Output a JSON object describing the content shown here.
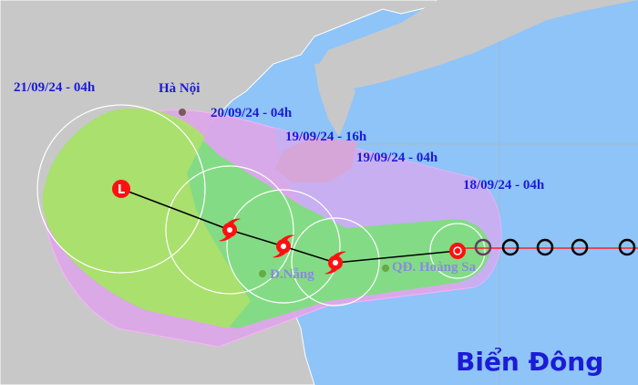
{
  "map": {
    "title": "Biển Đông",
    "places": {
      "hanoi": "Hà Nội",
      "danang": "Đ.Nẵng",
      "hoangsa": "QĐ. Hoàng Sa"
    },
    "timestamps": [
      "21/09/24 - 04h",
      "20/09/24 - 04h",
      "19/09/24 - 16h",
      "19/09/24 - 04h",
      "18/09/24 - 04h"
    ],
    "colors": {
      "sea": "#8ec4f8",
      "land": "#c8c8c8",
      "cone_outer": "#dca8e8",
      "cone_sea": "#c4b0f2",
      "cone_inner": "#80dd80",
      "land_zone": "#aee06a",
      "storm_symbol": "#ff1010",
      "track": "#000000",
      "past_track": "#ff2020",
      "label": "#1c1cd6"
    },
    "track_symbols": [
      "tropical-depression-L",
      "storm",
      "storm",
      "storm",
      "storm-current",
      "past-position",
      "past-position",
      "past-position",
      "past-position",
      "past-position"
    ]
  }
}
